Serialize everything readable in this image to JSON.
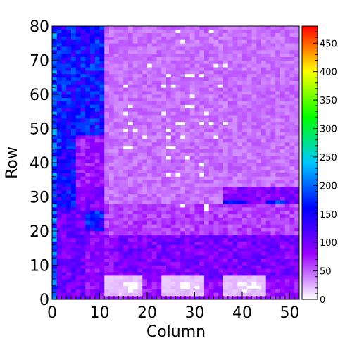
{
  "chart_data": {
    "type": "heatmap",
    "title": "",
    "xlabel": "Column",
    "ylabel": "Row",
    "xlim": [
      0,
      52
    ],
    "ylim": [
      0,
      80
    ],
    "x_ticks": [
      "0",
      "10",
      "20",
      "30",
      "40",
      "50"
    ],
    "y_ticks": [
      "0",
      "10",
      "20",
      "30",
      "40",
      "50",
      "60",
      "70",
      "80"
    ],
    "colorbar": {
      "range": [
        0,
        480
      ],
      "ticks": [
        "0",
        "50",
        "100",
        "150",
        "200",
        "250",
        "300",
        "350",
        "400",
        "450"
      ],
      "palette": [
        "#ffffff",
        "#9a00ff",
        "#0000ff",
        "#00c8ff",
        "#00ff00",
        "#ffff00",
        "#ff0000"
      ]
    },
    "regions": [
      {
        "cols": [
          0,
          1
        ],
        "rows": [
          0,
          80
        ],
        "value": 190
      },
      {
        "cols": [
          1,
          11
        ],
        "rows": [
          42,
          80
        ],
        "value": 160
      },
      {
        "cols": [
          5,
          11
        ],
        "rows": [
          33,
          48
        ],
        "value": 75
      },
      {
        "cols": [
          1,
          5
        ],
        "rows": [
          26,
          42
        ],
        "value": 150
      },
      {
        "cols": [
          5,
          11
        ],
        "rows": [
          26,
          33
        ],
        "value": 90
      },
      {
        "cols": [
          1,
          7
        ],
        "rows": [
          0,
          26
        ],
        "value": 100
      },
      {
        "cols": [
          7,
          13
        ],
        "rows": [
          20,
          26
        ],
        "value": 160
      },
      {
        "cols": [
          7,
          13
        ],
        "rows": [
          0,
          20
        ],
        "value": 85
      },
      {
        "cols": [
          11,
          52
        ],
        "rows": [
          28,
          80
        ],
        "value": 45
      },
      {
        "cols": [
          36,
          52
        ],
        "rows": [
          19,
          33
        ],
        "value": 90
      },
      {
        "cols": [
          36,
          41
        ],
        "rows": [
          20,
          29
        ],
        "value": 165
      },
      {
        "cols": [
          45,
          50
        ],
        "rows": [
          19,
          29
        ],
        "value": 160
      },
      {
        "cols": [
          11,
          52
        ],
        "rows": [
          19,
          28
        ],
        "value": 60
      },
      {
        "cols": [
          13,
          52
        ],
        "rows": [
          6,
          19
        ],
        "value": 95
      },
      {
        "cols": [
          11,
          52
        ],
        "rows": [
          0,
          6
        ],
        "value": 80
      },
      {
        "cols": [
          11,
          19
        ],
        "rows": [
          1,
          7
        ],
        "value": 20
      },
      {
        "cols": [
          23,
          32
        ],
        "rows": [
          1,
          7
        ],
        "value": 20
      },
      {
        "cols": [
          36,
          45
        ],
        "rows": [
          1,
          7
        ],
        "value": 20
      }
    ],
    "zero_cells": [
      [
        26,
        78
      ],
      [
        33,
        78
      ],
      [
        27,
        75
      ],
      [
        20,
        68
      ],
      [
        34,
        68
      ],
      [
        36,
        68
      ],
      [
        24,
        65
      ],
      [
        28,
        65
      ],
      [
        29,
        65
      ],
      [
        31,
        65
      ],
      [
        15,
        62
      ],
      [
        23,
        62
      ],
      [
        25,
        62
      ],
      [
        35,
        62
      ],
      [
        29,
        59
      ],
      [
        16,
        56
      ],
      [
        28,
        56
      ],
      [
        29,
        56
      ],
      [
        15,
        54
      ],
      [
        23,
        54
      ],
      [
        32,
        54
      ],
      [
        16,
        51
      ],
      [
        26,
        51
      ],
      [
        27,
        51
      ],
      [
        31,
        51
      ],
      [
        33,
        51
      ],
      [
        36,
        51
      ],
      [
        15,
        49
      ],
      [
        17,
        49
      ],
      [
        24,
        49
      ],
      [
        19,
        47
      ],
      [
        24,
        47
      ],
      [
        27,
        47
      ],
      [
        34,
        47
      ],
      [
        15,
        44
      ],
      [
        16,
        44
      ],
      [
        24,
        44
      ],
      [
        25,
        44
      ],
      [
        24,
        41
      ],
      [
        28,
        41
      ],
      [
        31,
        39
      ],
      [
        24,
        36
      ],
      [
        26,
        36
      ],
      [
        31,
        36
      ],
      [
        27,
        27
      ],
      [
        32,
        26
      ],
      [
        32,
        27
      ],
      [
        15,
        4
      ],
      [
        16,
        4
      ],
      [
        17,
        4
      ],
      [
        16,
        3
      ],
      [
        17,
        3
      ],
      [
        16,
        2
      ],
      [
        27,
        4
      ],
      [
        28,
        4
      ],
      [
        27,
        3
      ],
      [
        28,
        3
      ],
      [
        30,
        3
      ],
      [
        39,
        4
      ],
      [
        40,
        4
      ],
      [
        42,
        4
      ],
      [
        41,
        3
      ],
      [
        42,
        3
      ],
      [
        43,
        3
      ],
      [
        40,
        2
      ]
    ]
  }
}
